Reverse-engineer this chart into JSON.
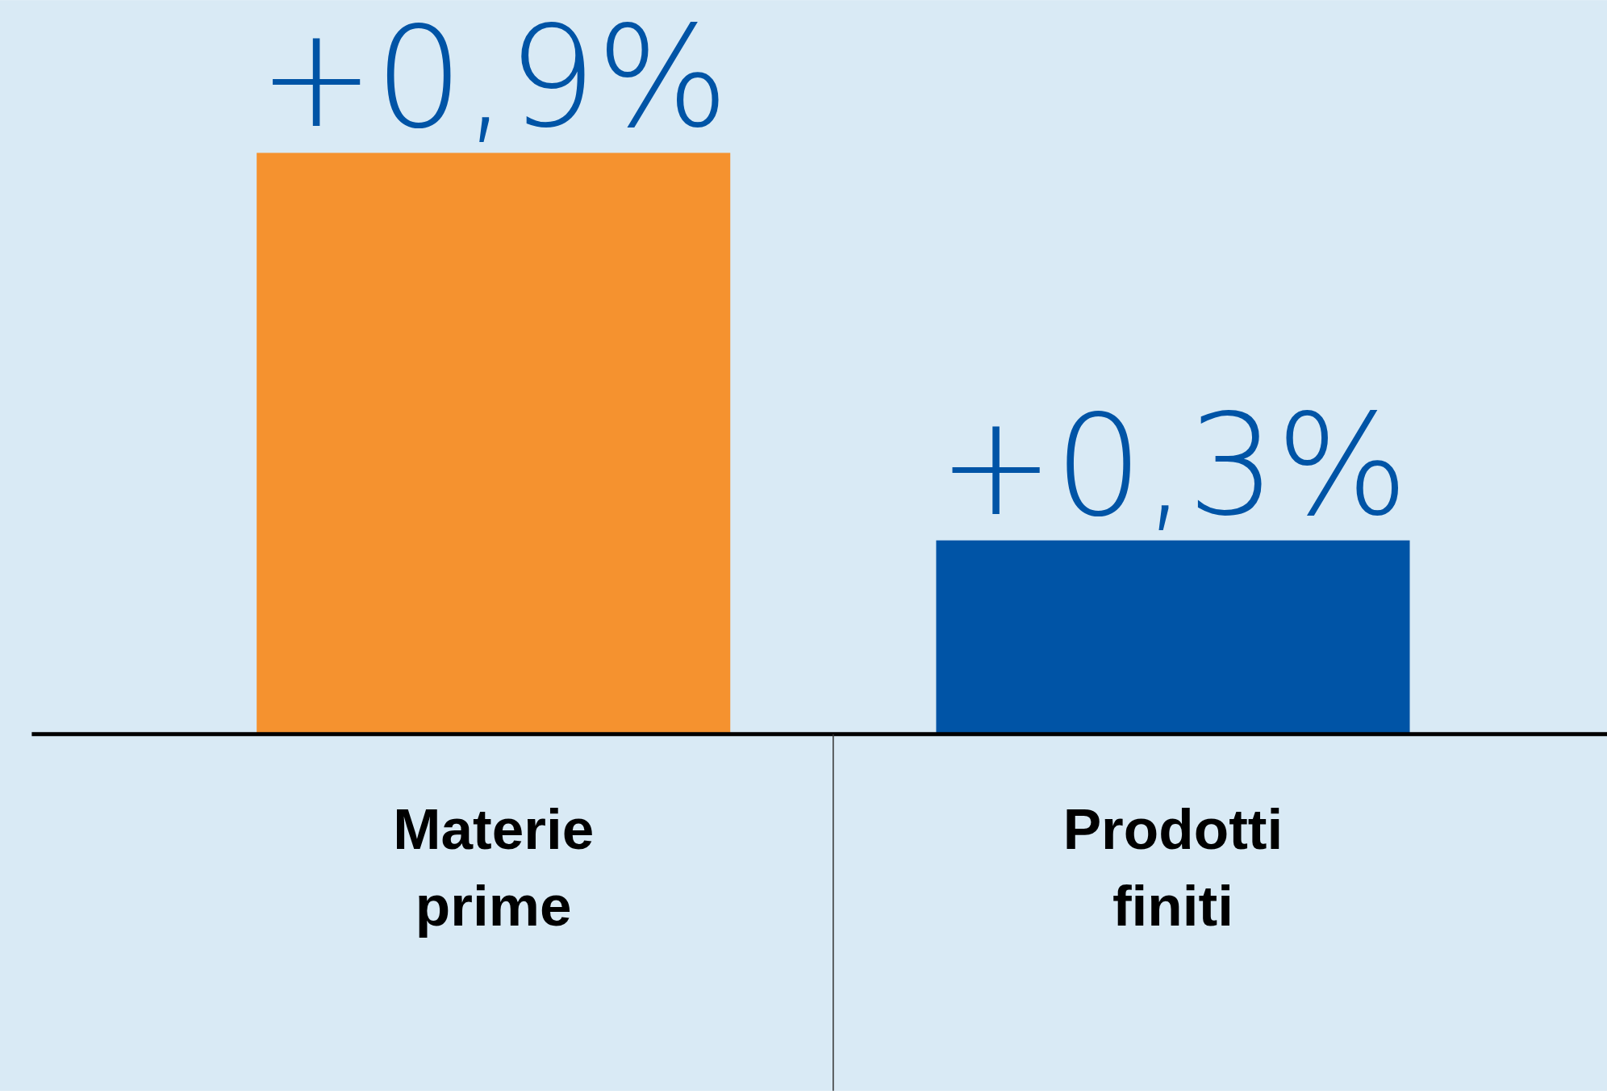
{
  "chart_data": {
    "type": "bar",
    "categories": [
      "Materie prime",
      "Prodotti finiti"
    ],
    "values": [
      0.9,
      0.3
    ],
    "colors": [
      "#f5922f",
      "#0054a6"
    ],
    "value_labels": [
      "+0,9%",
      "+0,3%"
    ]
  }
}
